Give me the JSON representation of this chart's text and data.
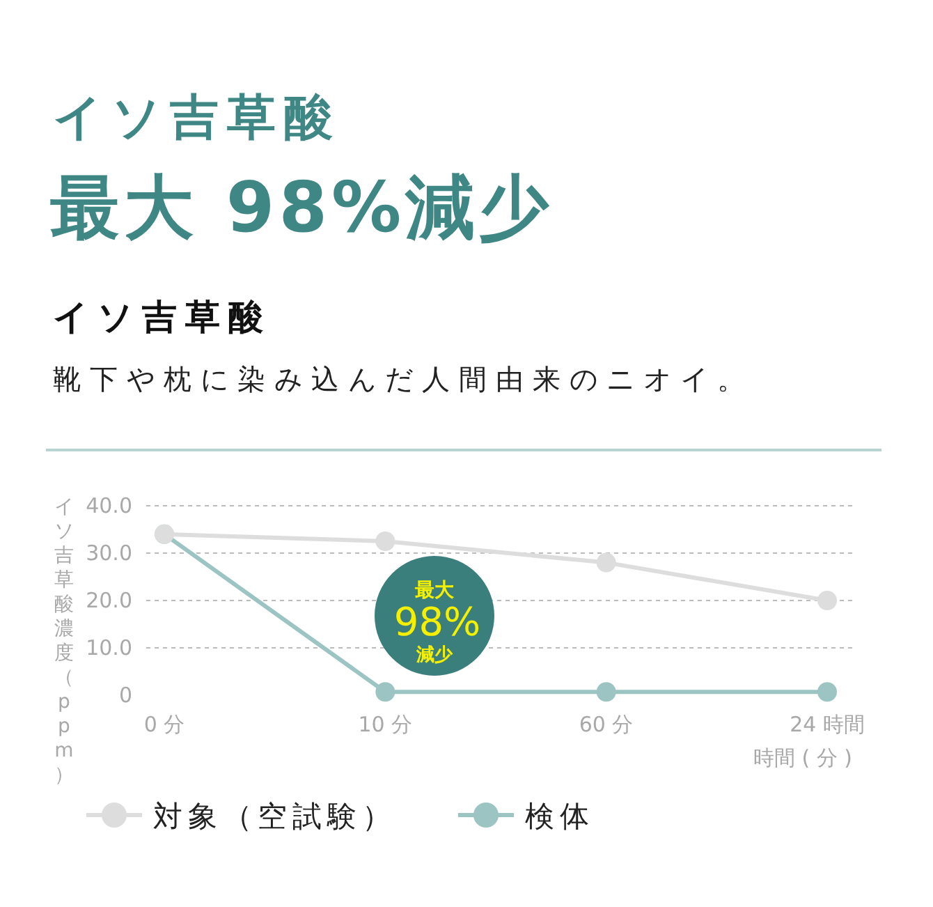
{
  "chart_data": {
    "type": "line",
    "title": "イソ吉草酸",
    "subtitle": "最大 98%減少",
    "annotations": [
      "イソ吉草酸",
      "靴下や枕に染み込んだ人間由来のニオイ。",
      "最大",
      "98%",
      "減少"
    ],
    "categories": [
      "0 分",
      "10 分",
      "60 分",
      "24 時間"
    ],
    "xlabel": "時間 ( 分 )",
    "ylabel": "イソ吉草酸濃度（ppm）",
    "ylim": [
      0,
      40
    ],
    "yticks": [
      0,
      {
        "value": 10,
        "label": "10.0"
      },
      {
        "value": 20,
        "label": "20.0"
      },
      {
        "value": 30,
        "label": "30.0"
      },
      {
        "value": 40,
        "label": "40.0"
      }
    ],
    "grid": "y",
    "legend": "bottom",
    "marker": "circle",
    "line_style": "solid",
    "series": [
      {
        "name": "対象（空試験）",
        "color": "#dddddd",
        "values": [
          34,
          32.5,
          28,
          20
        ]
      },
      {
        "name": "検体",
        "color": "#9cc4c3",
        "values": [
          34,
          0.7,
          0.7,
          0.7
        ]
      }
    ]
  }
}
